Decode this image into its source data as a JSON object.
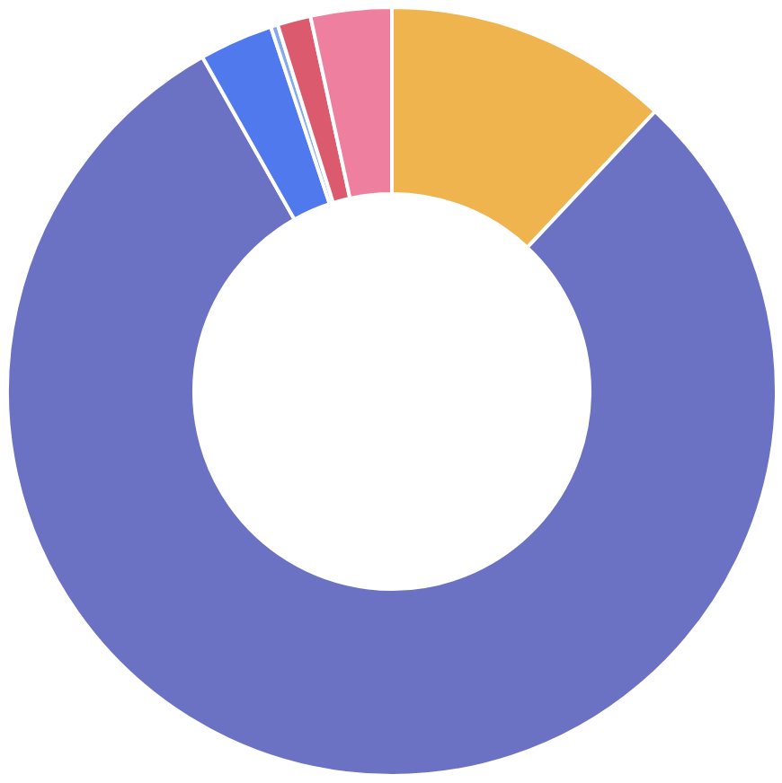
{
  "chart_data": {
    "type": "donut",
    "categories": [
      null,
      null,
      null,
      null,
      null,
      null
    ],
    "values": [
      12,
      79.8,
      3.1,
      0.3,
      1.4,
      3.4
    ],
    "colors": [
      "#f0b44f",
      "#6b71c3",
      "#5079ee",
      "#86a8f0",
      "#dc5a6e",
      "#ef7f9f"
    ]
  }
}
